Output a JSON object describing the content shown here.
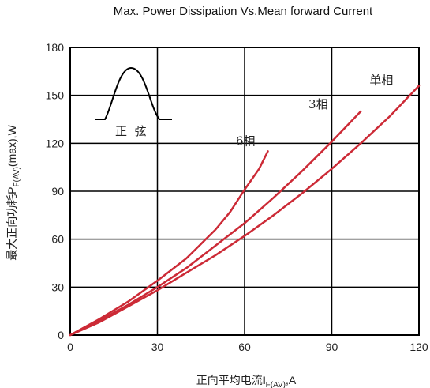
{
  "chart_data": {
    "type": "line",
    "title": "Max. Power Dissipation Vs.Mean forward Current",
    "xlabel": {
      "prefix": "正向平均电流",
      "symbol": "I",
      "subscript": "F(AV)",
      "suffix": ",A"
    },
    "ylabel": {
      "prefix": "最大正向功耗",
      "symbol": "P",
      "subscript": "F(AV)",
      "suffix": "(max),W"
    },
    "xlim": [
      0,
      120
    ],
    "ylim": [
      0,
      180
    ],
    "xticks": [
      0,
      30,
      60,
      90,
      120
    ],
    "yticks": [
      0,
      30,
      60,
      90,
      120,
      150,
      180
    ],
    "grid": true,
    "series": [
      {
        "name": "单相",
        "x": [
          0,
          10,
          20,
          30,
          40,
          50,
          60,
          70,
          80,
          90,
          100,
          110,
          120
        ],
        "y": [
          0,
          8,
          18,
          28,
          39,
          50,
          62,
          75,
          89,
          104,
          120,
          137,
          156
        ]
      },
      {
        "name": "3相",
        "x": [
          0,
          10,
          20,
          30,
          40,
          50,
          60,
          70,
          80,
          90,
          100
        ],
        "y": [
          0,
          9,
          19,
          30,
          42,
          56,
          70,
          86,
          103,
          121,
          140
        ]
      },
      {
        "name": "6相",
        "x": [
          0,
          10,
          20,
          30,
          40,
          50,
          55,
          60,
          65,
          68
        ],
        "y": [
          0,
          10,
          21,
          34,
          48,
          66,
          77,
          91,
          104,
          115
        ]
      }
    ],
    "annotations": [
      {
        "text": "单相",
        "x": 103,
        "y": 157
      },
      {
        "text": "3相",
        "x": 82,
        "y": 142
      },
      {
        "text": "6相",
        "x": 57,
        "y": 119
      }
    ],
    "inset": {
      "label": "正  弦"
    },
    "colors": {
      "series": "#cc2a36",
      "grid": "#000000",
      "axis": "#000000"
    }
  }
}
